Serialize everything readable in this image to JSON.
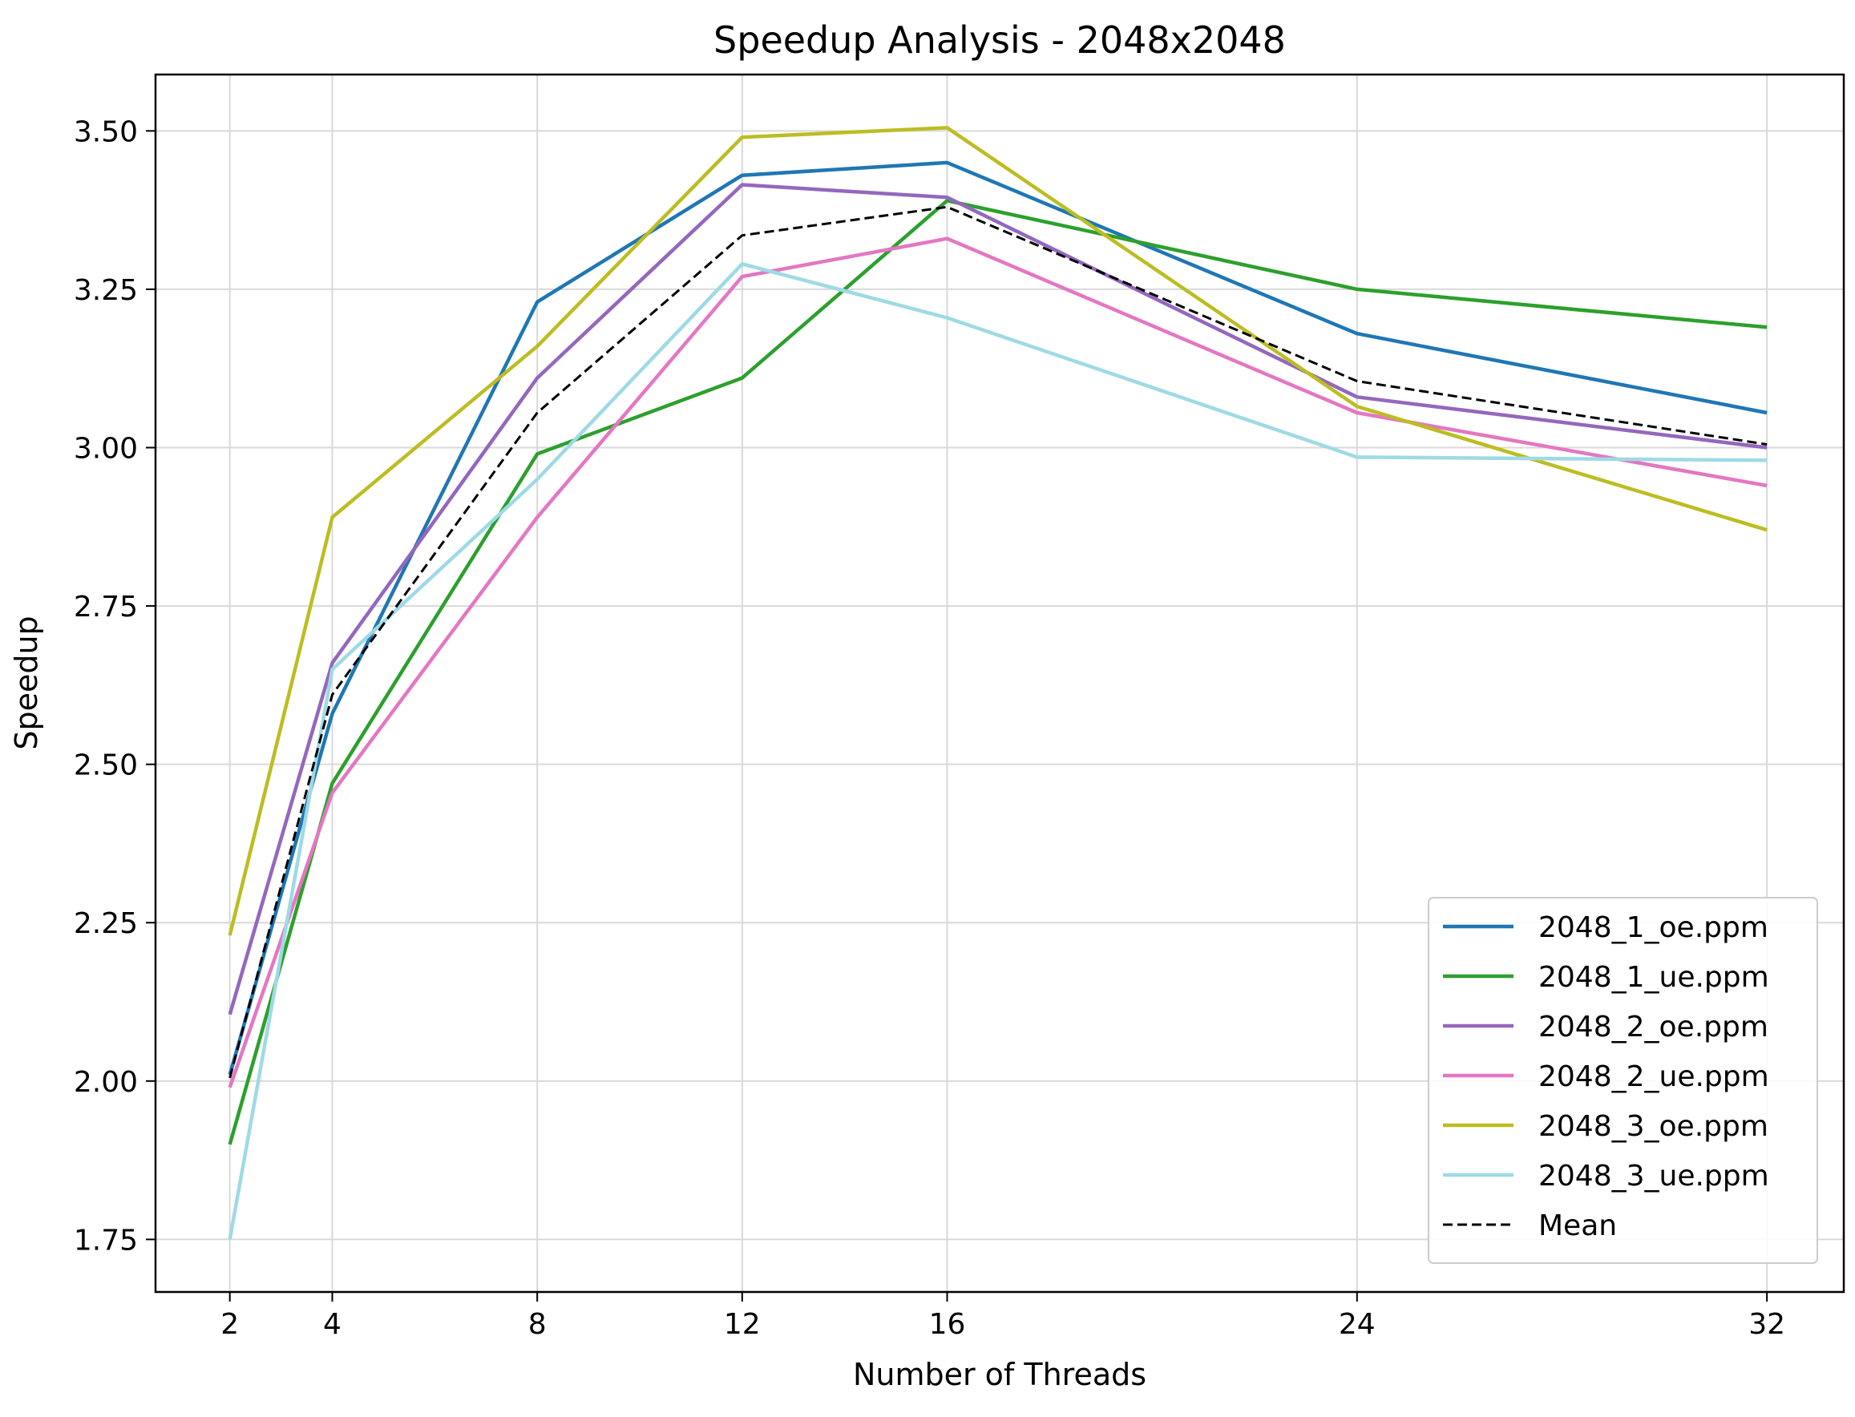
{
  "chart_data": {
    "type": "line",
    "title": "Speedup Analysis - 2048x2048",
    "xlabel": "Number of Threads",
    "ylabel": "Speedup",
    "x": [
      2,
      4,
      8,
      12,
      16,
      24,
      32
    ],
    "xticks": [
      "2",
      "4",
      "8",
      "12",
      "16",
      "24",
      "32"
    ],
    "yticks": [
      "1.75",
      "2.00",
      "2.25",
      "2.50",
      "2.75",
      "3.00",
      "3.25",
      "3.50"
    ],
    "xlim": [
      0.55,
      33.5
    ],
    "ylim": [
      1.667,
      3.589
    ],
    "grid": true,
    "legend_position": "lower right",
    "series": [
      {
        "name": "2048_1_oe.ppm",
        "color": "#1f77b4",
        "dash": false,
        "values": [
          2.01,
          2.58,
          3.23,
          3.43,
          3.45,
          3.18,
          3.055
        ]
      },
      {
        "name": "2048_1_ue.ppm",
        "color": "#2ca02c",
        "dash": false,
        "values": [
          1.9,
          2.47,
          2.99,
          3.11,
          3.39,
          3.25,
          3.19
        ]
      },
      {
        "name": "2048_2_oe.ppm",
        "color": "#9467bd",
        "dash": false,
        "values": [
          2.105,
          2.66,
          3.11,
          3.415,
          3.395,
          3.08,
          3.0
        ]
      },
      {
        "name": "2048_2_ue.ppm",
        "color": "#e377c2",
        "dash": false,
        "values": [
          1.99,
          2.455,
          2.89,
          3.27,
          3.33,
          3.055,
          2.94
        ]
      },
      {
        "name": "2048_3_oe.ppm",
        "color": "#bcbd22",
        "dash": false,
        "values": [
          2.23,
          2.89,
          3.16,
          3.49,
          3.505,
          3.065,
          2.87
        ]
      },
      {
        "name": "2048_3_ue.ppm",
        "color": "#9edae5",
        "dash": false,
        "values": [
          1.75,
          2.65,
          2.95,
          3.29,
          3.205,
          2.985,
          2.98
        ]
      },
      {
        "name": "Mean",
        "color": "#000000",
        "dash": true,
        "values": [
          2.005,
          2.61,
          3.055,
          3.335,
          3.38,
          3.105,
          3.005
        ]
      }
    ]
  }
}
